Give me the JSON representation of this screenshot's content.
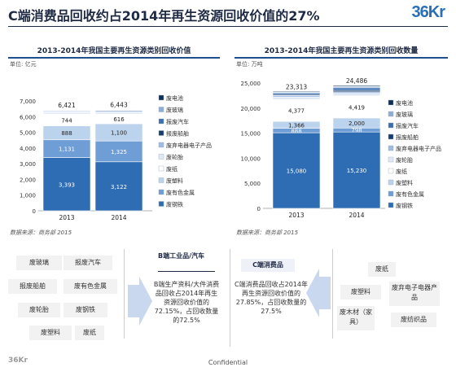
{
  "title": "C端消费品回收约占2014年再生资源回收价值的27%",
  "logo": "36Kr",
  "footer_logo": "36Kr",
  "confidential": "Confidential",
  "colors": {
    "废钢铁": "#2e6db4",
    "废有色金属": "#6f9ed6",
    "废塑料": "#bcd3ee",
    "废纸": "#ffffff",
    "废轮胎": "#dfe9f5",
    "废弃电器电子产品": "#9fbbe0",
    "报废船舶": "#173c6e",
    "报废汽车": "#3b6fb0",
    "废玻璃": "#8faed6",
    "废电池": "#102f57",
    "navy": "#1f2a44"
  },
  "chart_data": [
    {
      "type": "bar",
      "stacked": true,
      "title": "2013-2014年我国主要再生资源类别回收价值",
      "unit": "单位: 亿元",
      "categories": [
        "2013",
        "2014"
      ],
      "ylim": [
        0,
        7000
      ],
      "yticks": [
        "0",
        "1,000",
        "2,000",
        "3,000",
        "4,000",
        "5,000",
        "6,000",
        "7,000"
      ],
      "totals": [
        "6,421",
        "6,443"
      ],
      "total_values": [
        6421,
        6443
      ],
      "series": [
        {
          "name": "废钢铁",
          "values": [
            3393,
            3122
          ],
          "labels": [
            "3,393",
            "3,122"
          ]
        },
        {
          "name": "废有色金属",
          "values": [
            1131,
            1325
          ],
          "labels": [
            "1,131",
            "1,325"
          ]
        },
        {
          "name": "废塑料",
          "values": [
            888,
            1100
          ],
          "labels": [
            "888",
            "1,100"
          ]
        },
        {
          "name": "废纸",
          "values": [
            744,
            616
          ],
          "labels": [
            "744",
            "616"
          ]
        },
        {
          "name": "废轮胎",
          "values": [
            100,
            100
          ],
          "labels": [
            "",
            ""
          ]
        },
        {
          "name": "废弃电器电子产品",
          "values": [
            50,
            50
          ],
          "labels": [
            "",
            ""
          ]
        },
        {
          "name": "报废船舶",
          "values": [
            25,
            30
          ],
          "labels": [
            "",
            ""
          ]
        },
        {
          "name": "报废汽车",
          "values": [
            50,
            60
          ],
          "labels": [
            "",
            ""
          ]
        },
        {
          "name": "废玻璃",
          "values": [
            20,
            20
          ],
          "labels": [
            "",
            ""
          ]
        },
        {
          "name": "废电池",
          "values": [
            20,
            20
          ],
          "labels": [
            "",
            ""
          ]
        }
      ],
      "source": "数据来源：商务部 2015"
    },
    {
      "type": "bar",
      "stacked": true,
      "title": "2013-2014年我国主要再生资源类别回收数量",
      "unit": "单位: 万吨",
      "categories": [
        "2013",
        "2014"
      ],
      "ylim": [
        0,
        25000
      ],
      "yticks": [
        "0",
        "5,000",
        "10,000",
        "15,000",
        "20,000",
        "25,000"
      ],
      "totals": [
        "23,313",
        "24,486"
      ],
      "total_values": [
        23313,
        24486
      ],
      "series": [
        {
          "name": "废钢铁",
          "values": [
            15080,
            15230
          ],
          "labels": [
            "15,080",
            "15,230"
          ]
        },
        {
          "name": "废有色金属",
          "values": [
            888,
            798
          ],
          "labels": [
            "888",
            "798"
          ]
        },
        {
          "name": "废塑料",
          "values": [
            1366,
            2000
          ],
          "labels": [
            "1,366",
            "2,000"
          ]
        },
        {
          "name": "废纸",
          "values": [
            4377,
            4419
          ],
          "labels": [
            "4,377",
            "4,419"
          ]
        },
        {
          "name": "废轮胎",
          "values": [
            500,
            500
          ],
          "labels": [
            "",
            ""
          ]
        },
        {
          "name": "废弃电器电子产品",
          "values": [
            300,
            300
          ],
          "labels": [
            "",
            ""
          ]
        },
        {
          "name": "报废船舶",
          "values": [
            200,
            300
          ],
          "labels": [
            "",
            ""
          ]
        },
        {
          "name": "报废汽车",
          "values": [
            300,
            500
          ],
          "labels": [
            "",
            ""
          ]
        },
        {
          "name": "废玻璃",
          "values": [
            152,
            250
          ],
          "labels": [
            "",
            ""
          ]
        },
        {
          "name": "废电池",
          "values": [
            150,
            189
          ],
          "labels": [
            "",
            ""
          ]
        }
      ],
      "source": "数据来源：商务部 2015"
    }
  ],
  "legend_order": [
    "废电池",
    "废玻璃",
    "报废汽车",
    "报废船舶",
    "废弃电器电子产品",
    "废轮胎",
    "废纸",
    "废塑料",
    "废有色金属",
    "废钢铁"
  ],
  "b_side": {
    "tags": [
      "废玻璃",
      "报废汽车",
      "报废船舶",
      "废有色金属",
      "废轮胎",
      "废钢铁",
      "废塑料",
      "废纸"
    ],
    "box_title": "B端工业品/汽车",
    "box_text": "B端生产资料/大件消费品回收占2014年再生资源回收价值的72.15%，占回收数量的72.5%"
  },
  "c_side": {
    "box_title": "C端消费品",
    "box_text": "C端消费品回收占2014年再生资源回收价值的27.85%，占回收数量的27.5%",
    "tags": [
      "废纸",
      "废塑料",
      "废弃电子电器产品",
      "废木材（家具）",
      "废纺织品"
    ]
  }
}
